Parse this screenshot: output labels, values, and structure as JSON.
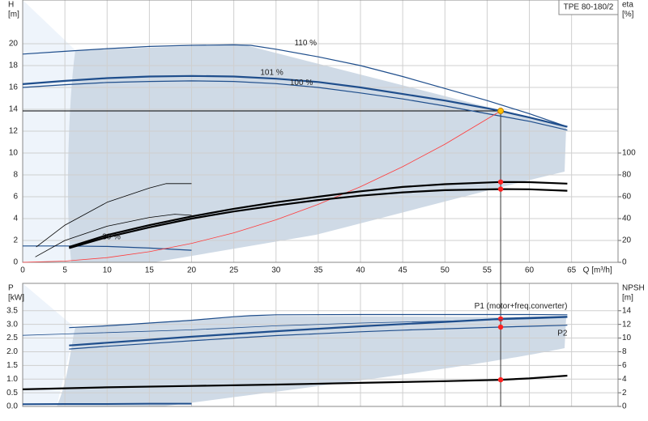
{
  "chart_data": [
    {
      "type": "line",
      "title": "TPE 80-180/2",
      "ylabel": [
        "H",
        "[m]"
      ],
      "y2label": [
        "eta",
        "[%]"
      ],
      "xlabel": "Q [m³/h]",
      "xlim": [
        0,
        70.5
      ],
      "xticks": [
        0,
        5,
        10,
        15,
        20,
        25,
        30,
        35,
        40,
        45,
        50,
        55,
        60,
        65
      ],
      "ylim": [
        0,
        24
      ],
      "yticks": [
        0,
        2,
        4,
        6,
        8,
        10,
        12,
        14,
        16,
        18,
        20
      ],
      "y2lim": [
        0,
        240
      ],
      "y2ticks": [
        0,
        20,
        40,
        60,
        80,
        100
      ],
      "grid": true,
      "duty_point": {
        "q": 56.6,
        "h": 13.85
      },
      "series": [
        {
          "name": "110 %",
          "color": "#1f4e8c",
          "width": 1.2,
          "x": [
            0,
            5,
            10,
            15,
            20,
            25,
            27,
            30,
            35,
            40,
            45,
            50,
            55,
            60,
            64.5
          ],
          "values": [
            19.05,
            19.3,
            19.55,
            19.75,
            19.85,
            19.9,
            19.85,
            19.5,
            18.8,
            18.0,
            17.0,
            15.9,
            14.8,
            13.6,
            12.4
          ]
        },
        {
          "name": "101 %",
          "color": "#1f4e8c",
          "width": 2.2,
          "x": [
            0,
            5,
            10,
            15,
            20,
            25,
            30,
            35,
            40,
            45,
            50,
            55,
            56.6,
            60,
            64.5
          ],
          "values": [
            16.3,
            16.6,
            16.85,
            17.0,
            17.05,
            17.0,
            16.8,
            16.5,
            16.0,
            15.4,
            14.8,
            14.1,
            13.85,
            13.25,
            12.4
          ]
        },
        {
          "name": "100 %",
          "color": "#1f4e8c",
          "width": 1.2,
          "x": [
            0,
            5,
            10,
            15,
            20,
            25,
            30,
            35,
            40,
            45,
            50,
            55,
            60,
            64.5
          ],
          "values": [
            16.0,
            16.25,
            16.45,
            16.55,
            16.6,
            16.55,
            16.35,
            16.0,
            15.5,
            14.95,
            14.3,
            13.6,
            12.9,
            12.1
          ]
        },
        {
          "name": "30 %",
          "color": "#1f4e8c",
          "width": 1.2,
          "x": [
            0,
            5,
            10,
            15,
            20
          ],
          "values": [
            1.5,
            1.5,
            1.45,
            1.3,
            1.1
          ]
        },
        {
          "color": "#ff3b3b",
          "width": 0.8,
          "x": [
            0,
            5,
            10,
            15,
            20,
            25,
            30,
            35,
            40,
            45,
            50,
            56.6
          ],
          "values": [
            0,
            0.11,
            0.43,
            0.97,
            1.73,
            2.7,
            3.89,
            5.3,
            6.92,
            8.75,
            10.81,
            13.85
          ]
        },
        {
          "color": "#000000",
          "width": 2.2,
          "axis": "y2",
          "x": [
            5.5,
            10,
            15,
            20,
            25,
            30,
            35,
            40,
            45,
            50,
            56.6,
            60,
            64.5
          ],
          "values": [
            14,
            25,
            34,
            42,
            49,
            55,
            60,
            65,
            69,
            71.5,
            73.5,
            73.3,
            72
          ]
        },
        {
          "color": "#000000",
          "width": 2.2,
          "axis": "y2",
          "x": [
            5.5,
            10,
            15,
            20,
            25,
            30,
            35,
            40,
            45,
            50,
            56.6,
            60,
            64.5
          ],
          "values": [
            13,
            23,
            32,
            40,
            46.5,
            52,
            57,
            61,
            64,
            66,
            67,
            66.8,
            65.5
          ]
        },
        {
          "color": "#000000",
          "width": 0.8,
          "axis": "y2",
          "x": [
            1.6,
            5,
            10,
            15,
            17,
            20
          ],
          "values": [
            14,
            34,
            55,
            68,
            72,
            72
          ]
        },
        {
          "color": "#000000",
          "width": 0.8,
          "axis": "y2",
          "x": [
            1.5,
            5,
            10,
            15,
            18,
            20
          ],
          "values": [
            5,
            20,
            33,
            41,
            44,
            43
          ]
        }
      ]
    },
    {
      "type": "line",
      "ylabel": [
        "P",
        "[kW]"
      ],
      "y2label": [
        "NPSH",
        "[m]"
      ],
      "xlim": [
        0,
        70.5
      ],
      "xticks": [
        0,
        5,
        10,
        15,
        20,
        25,
        30,
        35,
        40,
        45,
        50,
        55,
        60,
        65
      ],
      "ylim": [
        0,
        4.5
      ],
      "yticks": [
        {
          "value": 0,
          "label": "0.0"
        },
        0.5,
        {
          "value": 1,
          "label": "1.0"
        },
        1.5,
        {
          "value": 2,
          "label": "2.0"
        },
        2.5,
        {
          "value": 3,
          "label": "3.0"
        },
        3.5
      ],
      "y2lim": [
        0,
        18
      ],
      "y2ticks": [
        0,
        2,
        4,
        6,
        8,
        10,
        12,
        14
      ],
      "grid": true,
      "series": [
        {
          "name": "P1 (motor+freq.converter)",
          "color": "#1f4e8c",
          "width": 2.2,
          "x": [
            5.5,
            10,
            15,
            20,
            25,
            30,
            35,
            40,
            45,
            50,
            56.6,
            60,
            64.5
          ],
          "values": [
            2.23,
            2.33,
            2.44,
            2.55,
            2.65,
            2.75,
            2.84,
            2.93,
            3.01,
            3.09,
            3.2,
            3.24,
            3.28
          ]
        },
        {
          "name": "P2",
          "color": "#1f4e8c",
          "width": 1.2,
          "x": [
            5.5,
            10,
            15,
            20,
            25,
            30,
            35,
            40,
            45,
            50,
            56.6,
            60,
            64.5
          ],
          "values": [
            2.1,
            2.2,
            2.3,
            2.4,
            2.5,
            2.59,
            2.66,
            2.73,
            2.79,
            2.84,
            2.9,
            2.93,
            2.97
          ]
        },
        {
          "color": "#1f4e8c",
          "width": 1.2,
          "x": [
            5.5,
            10,
            15,
            20,
            25,
            27,
            30,
            40,
            50,
            60,
            64.5
          ],
          "values": [
            2.88,
            2.95,
            3.05,
            3.15,
            3.28,
            3.32,
            3.35,
            3.36,
            3.36,
            3.36,
            3.35
          ]
        },
        {
          "color": "#1f4e8c",
          "width": 0.8,
          "x": [
            0,
            5,
            10,
            20,
            30,
            40,
            50,
            60,
            64.5
          ],
          "values": [
            2.6,
            2.65,
            2.7,
            2.8,
            2.95,
            3.05,
            3.12,
            3.2,
            3.25
          ]
        },
        {
          "color": "#1f4e8c",
          "width": 2,
          "x": [
            0,
            5,
            10,
            15,
            20
          ],
          "values": [
            0.08,
            0.09,
            0.09,
            0.1,
            0.1
          ]
        },
        {
          "color": "#000000",
          "width": 2.2,
          "axis": "y2",
          "x": [
            0,
            10,
            20,
            30,
            40,
            50,
            56.6,
            60,
            64.5
          ],
          "values": [
            2.5,
            2.8,
            3.0,
            3.2,
            3.45,
            3.7,
            3.9,
            4.1,
            4.5
          ]
        }
      ]
    }
  ]
}
